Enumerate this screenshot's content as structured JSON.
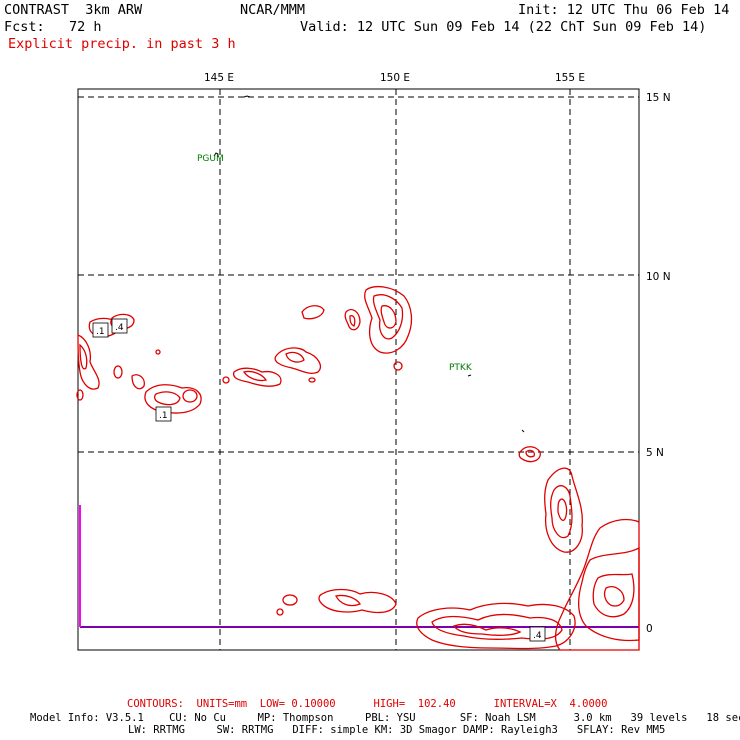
{
  "header": {
    "title": "CONTRAST  3km ARW",
    "center": "NCAR/MMM",
    "init": "Init: 12 UTC Thu 06 Feb 14",
    "fcst": "Fcst:   72 h",
    "valid": "Valid: 12 UTC Sun 09 Feb 14 (22 ChT Sun 09 Feb 14)",
    "field": "Explicit precip. in past 3 h"
  },
  "map": {
    "lon_labels": [
      "145 E",
      "150 E",
      "155 E"
    ],
    "lat_labels": [
      "15 N",
      "10 N",
      "5 N",
      "0"
    ],
    "stations": [
      {
        "name": "PGUM",
        "lon": 144.8,
        "lat": 13.5
      },
      {
        "name": "PTKK",
        "lon": 151.8,
        "lat": 7.4
      }
    ],
    "contour_labels": [
      ".1",
      ".4",
      ".1",
      ".4"
    ],
    "colors": {
      "contour": "#e00000",
      "station": "#007a00",
      "equator_line": "#7a00b0",
      "edge_line": "#ff00ff"
    }
  },
  "footer": {
    "contours": "CONTOURS:  UNITS=mm  LOW= 0.10000      HIGH=  102.40      INTERVAL=X  4.0000",
    "model1": "Model Info: V3.5.1    CU: No Cu     MP: Thompson     PBL: YSU       SF: Noah LSM      3.0 km   39 levels   18 sec",
    "model2": "LW: RRTMG     SW: RRTMG   DIFF: simple KM: 3D Smagor DAMP: Rayleigh3   SFLAY: Rev MM5"
  }
}
